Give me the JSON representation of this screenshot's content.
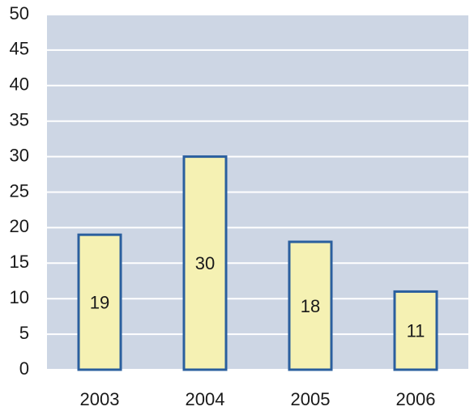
{
  "chart_data": {
    "type": "bar",
    "categories": [
      "2003",
      "2004",
      "2005",
      "2006"
    ],
    "values": [
      19,
      30,
      18,
      11
    ],
    "color": "#f5f1b3",
    "edge_color": "#2a5f9e",
    "plot_background": "#cdd6e4",
    "ylim": [
      0,
      50
    ],
    "yticks": [
      0,
      5,
      10,
      15,
      20,
      25,
      30,
      35,
      40,
      45,
      50
    ],
    "grid": true
  }
}
